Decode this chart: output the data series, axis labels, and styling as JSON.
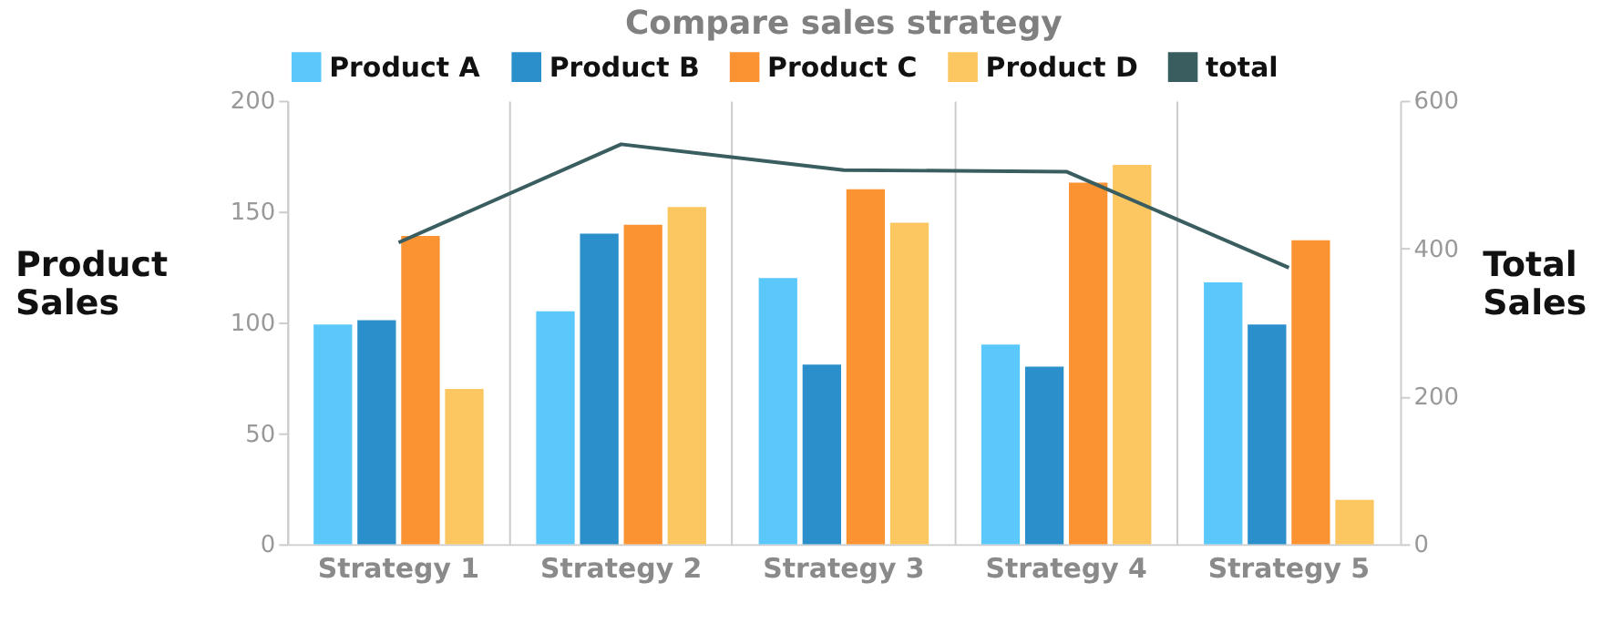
{
  "chart_data": {
    "type": "bar",
    "title": "Compare sales strategy",
    "ylabel": "Product Sales",
    "y2label": "Total Sales",
    "categories": [
      "Strategy 1",
      "Strategy 2",
      "Strategy 3",
      "Strategy 4",
      "Strategy 5"
    ],
    "series": [
      {
        "name": "Product A",
        "color": "#5bc8fb",
        "values": [
          99,
          105,
          120,
          90,
          118
        ]
      },
      {
        "name": "Product B",
        "color": "#2a8fca",
        "values": [
          101,
          140,
          81,
          80,
          99
        ]
      },
      {
        "name": "Product C",
        "color": "#fb9333",
        "values": [
          139,
          144,
          160,
          163,
          137
        ]
      },
      {
        "name": "Product D",
        "color": "#fcc760",
        "values": [
          70,
          152,
          145,
          171,
          20
        ]
      },
      {
        "name": "total",
        "type": "line",
        "axis": "y2",
        "color": "#3a5d60",
        "values": [
          408,
          541,
          506,
          504,
          374
        ]
      }
    ],
    "ylim": [
      0,
      200
    ],
    "yticks": [
      0,
      50,
      100,
      150,
      200
    ],
    "y2lim": [
      0,
      600
    ],
    "y2ticks": [
      0,
      200,
      400,
      600
    ],
    "grid": "x",
    "legend": "top"
  }
}
